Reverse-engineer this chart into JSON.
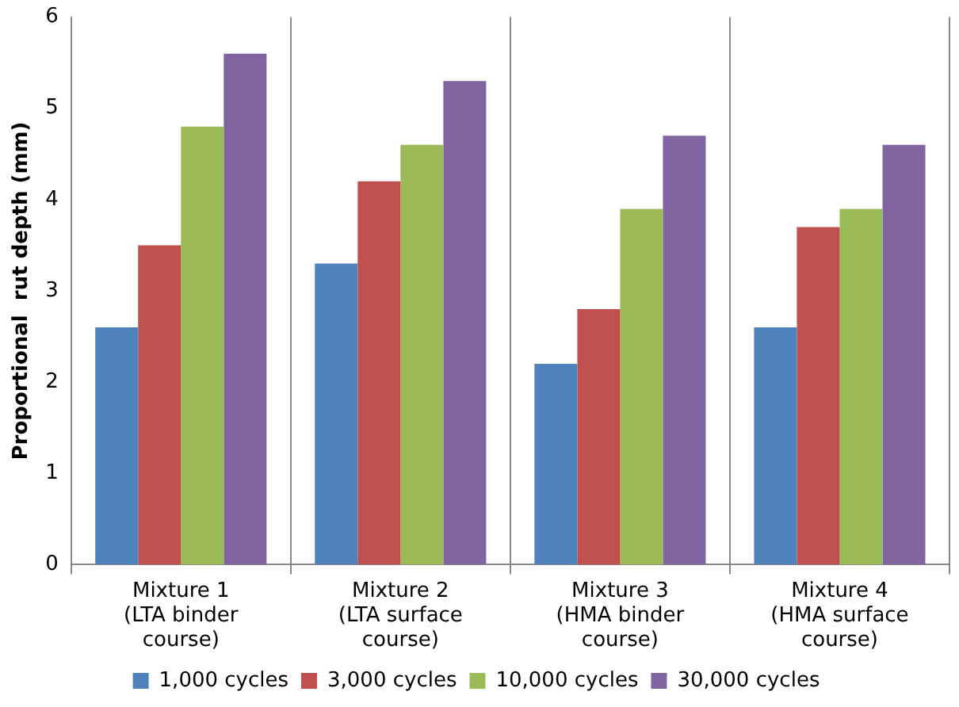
{
  "chart_data": {
    "type": "bar",
    "ylabel": "Proportional  rut depth (mm)",
    "categories": [
      "Mixture 1\n(LTA binder\ncourse)",
      "Mixture 2\n(LTA surface\ncourse)",
      "Mixture 3\n(HMA binder\ncourse)",
      "Mixture 4\n(HMA surface\ncourse)"
    ],
    "series": [
      {
        "name": "1,000 cycles",
        "color": "#4f81bd",
        "values": [
          2.6,
          3.3,
          2.2,
          2.6
        ]
      },
      {
        "name": "3,000 cycles",
        "color": "#c0504d",
        "values": [
          3.5,
          4.2,
          2.8,
          3.7
        ]
      },
      {
        "name": "10,000 cycles",
        "color": "#9bbb59",
        "values": [
          4.8,
          4.6,
          3.9,
          3.9
        ]
      },
      {
        "name": "30,000 cycles",
        "color": "#8064a2",
        "values": [
          5.6,
          5.3,
          4.7,
          4.6
        ]
      }
    ],
    "ylim": [
      0,
      6
    ],
    "yticks": [
      0,
      1,
      2,
      3,
      4,
      5,
      6
    ],
    "grid": "x",
    "legend": "bottom"
  }
}
